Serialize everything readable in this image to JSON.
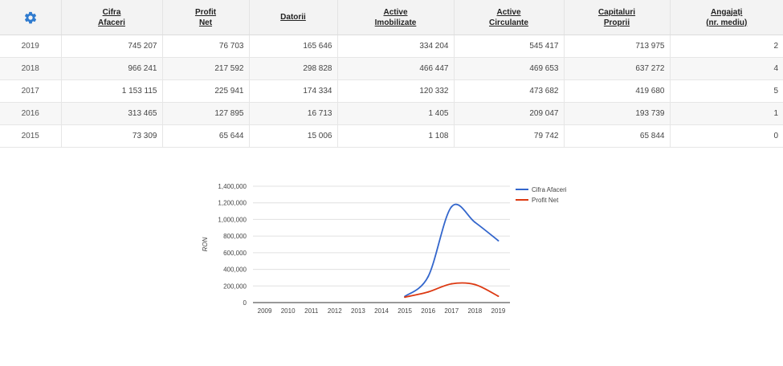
{
  "settings_icon": "gear-icon",
  "accent_color": "#2f7bcf",
  "table": {
    "columns": [
      [
        "Cifra",
        "Afaceri"
      ],
      [
        "Profit",
        "Net"
      ],
      [
        "Datorii",
        ""
      ],
      [
        "Active",
        "Imobilizate"
      ],
      [
        "Active",
        "Circulante"
      ],
      [
        "Capitaluri",
        "Proprii"
      ],
      [
        "Angajați",
        "(nr. mediu)"
      ]
    ],
    "rows": [
      [
        "2019",
        "745 207",
        "76 703",
        "165 646",
        "334 204",
        "545 417",
        "713 975",
        "2"
      ],
      [
        "2018",
        "966 241",
        "217 592",
        "298 828",
        "466 447",
        "469 653",
        "637 272",
        "4"
      ],
      [
        "2017",
        "1 153 115",
        "225 941",
        "174 334",
        "120 332",
        "473 682",
        "419 680",
        "5"
      ],
      [
        "2016",
        "313 465",
        "127 895",
        "16 713",
        "1 405",
        "209 047",
        "193 739",
        "1"
      ],
      [
        "2015",
        "73 309",
        "65 644",
        "15 006",
        "1 108",
        "79 742",
        "65 844",
        "0"
      ]
    ]
  },
  "chart_data": {
    "type": "line",
    "x": [
      "2009",
      "2010",
      "2011",
      "2012",
      "2013",
      "2014",
      "2015",
      "2016",
      "2017",
      "2018",
      "2019"
    ],
    "series": [
      {
        "name": "Cifra Afaceri",
        "color": "#3366cc",
        "values": [
          null,
          null,
          null,
          null,
          null,
          null,
          73309,
          313465,
          1153115,
          966241,
          745207
        ]
      },
      {
        "name": "Profit Net",
        "color": "#dc3912",
        "values": [
          null,
          null,
          null,
          null,
          null,
          null,
          65644,
          127895,
          225941,
          217592,
          76703
        ]
      }
    ],
    "ylabel": "RON",
    "ylim": [
      0,
      1400000
    ],
    "yticks": [
      "0",
      "200,000",
      "400,000",
      "600,000",
      "800,000",
      "1,000,000",
      "1,200,000",
      "1,400,000"
    ],
    "grid": true,
    "legend": "right"
  }
}
